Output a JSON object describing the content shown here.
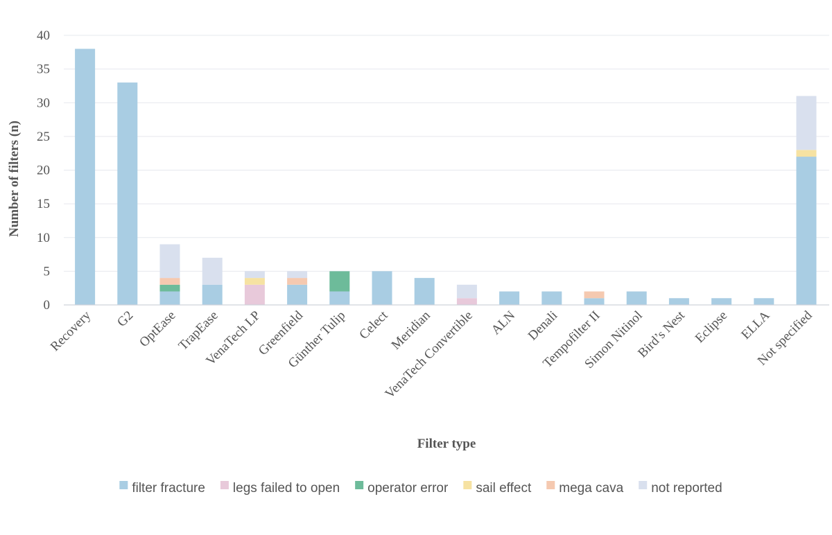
{
  "chart_data": {
    "type": "bar",
    "stacked": true,
    "title": "",
    "xlabel": "Filter type",
    "ylabel": "Number  of filters (n)",
    "ylim": [
      0,
      40
    ],
    "yticks": [
      0,
      5,
      10,
      15,
      20,
      25,
      30,
      35,
      40
    ],
    "grid": true,
    "legend_position": "bottom",
    "categories": [
      "Recovery",
      "G2",
      "OptEase",
      "TrapEase",
      "VenaTech LP",
      "Greenfield",
      "Günther Tulip",
      "Celect",
      "Meridian",
      "VenaTech Convertible",
      "ALN",
      "Denali",
      "Tempofilter II",
      "Simon Nitinol",
      "Bird’s Nest",
      "Eclipse",
      "ELLA",
      "Not specified"
    ],
    "series": [
      {
        "name": "filter fracture",
        "color": "#a9cde3",
        "values": [
          38,
          33,
          2,
          3,
          0,
          3,
          2,
          5,
          4,
          0,
          2,
          2,
          1,
          2,
          1,
          1,
          1,
          22
        ]
      },
      {
        "name": "legs failed to open",
        "color": "#e8c9da",
        "values": [
          0,
          0,
          0,
          0,
          3,
          0,
          0,
          0,
          0,
          1,
          0,
          0,
          0,
          0,
          0,
          0,
          0,
          0
        ]
      },
      {
        "name": "operator error",
        "color": "#6dbb9a",
        "values": [
          0,
          0,
          1,
          0,
          0,
          0,
          3,
          0,
          0,
          0,
          0,
          0,
          0,
          0,
          0,
          0,
          0,
          0
        ]
      },
      {
        "name": "sail effect",
        "color": "#f6e2a2",
        "values": [
          0,
          0,
          0,
          0,
          1,
          0,
          0,
          0,
          0,
          0,
          0,
          0,
          0,
          0,
          0,
          0,
          0,
          1
        ]
      },
      {
        "name": "mega cava",
        "color": "#f5c9b0",
        "values": [
          0,
          0,
          1,
          0,
          0,
          1,
          0,
          0,
          0,
          0,
          0,
          0,
          1,
          0,
          0,
          0,
          0,
          0
        ]
      },
      {
        "name": "not reported",
        "color": "#d9e0ee",
        "values": [
          0,
          0,
          5,
          4,
          1,
          1,
          0,
          0,
          0,
          2,
          0,
          0,
          0,
          0,
          0,
          0,
          0,
          8
        ]
      }
    ]
  }
}
